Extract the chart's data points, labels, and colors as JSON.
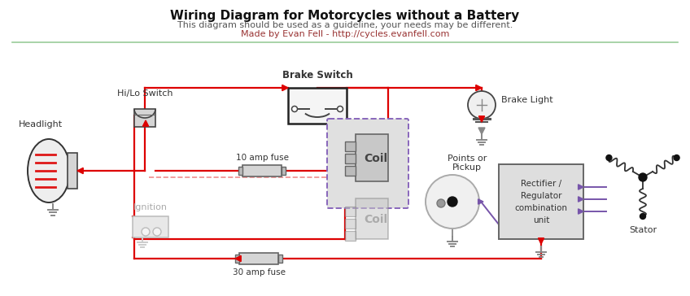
{
  "title": "Wiring Diagram for Motorcycles without a Battery",
  "subtitle": "This diagram should be used as a guideline, your needs may be different.",
  "credit": "Made by Evan Fell - http://cycles.evanfell.com",
  "bg": "#ffffff",
  "sep_color": "#99cc99",
  "red": "#dd0000",
  "purple": "#7755aa",
  "gray_dark": "#555555",
  "gray_mid": "#888888",
  "gray_light": "#cccccc",
  "gray_fill": "#d8d8d8",
  "label_dark": "#333333",
  "label_faded": "#aaaaaa",
  "link_color": "#993333",
  "title_fs": 11,
  "sub_fs": 8,
  "credit_fs": 8
}
